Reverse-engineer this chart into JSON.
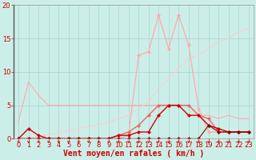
{
  "background_color": "#cceee8",
  "grid_color": "#aad4ce",
  "xlabel": "Vent moyen/en rafales ( km/h )",
  "xlabel_color": "#cc0000",
  "xlabel_fontsize": 7,
  "tick_color": "#cc0000",
  "tick_fontsize": 6,
  "xlim": [
    -0.5,
    23.5
  ],
  "ylim": [
    0,
    20
  ],
  "yticks": [
    0,
    5,
    10,
    15,
    20
  ],
  "xticks": [
    0,
    1,
    2,
    3,
    4,
    5,
    6,
    7,
    8,
    9,
    10,
    11,
    12,
    13,
    14,
    15,
    16,
    17,
    18,
    19,
    20,
    21,
    22,
    23
  ],
  "lines": [
    {
      "x": [
        0,
        1,
        2,
        3,
        4,
        5,
        6,
        7,
        8,
        9,
        10,
        11,
        12,
        13,
        14,
        15,
        16,
        17,
        18,
        19,
        20,
        21,
        22,
        23
      ],
      "y": [
        2.5,
        8.5,
        6.5,
        5.0,
        5.0,
        5.0,
        5.0,
        5.0,
        5.0,
        5.0,
        5.0,
        5.0,
        5.0,
        5.0,
        5.0,
        5.0,
        5.0,
        5.0,
        3.5,
        3.5,
        3.0,
        3.5,
        3.0,
        3.0
      ],
      "color": "#ffaaaa",
      "lw": 0.8,
      "marker": null,
      "ms": 0
    },
    {
      "x": [
        0,
        1,
        2,
        3,
        4,
        5,
        6,
        7,
        8,
        9,
        10,
        11,
        12,
        13,
        14,
        15,
        16,
        17,
        18,
        19,
        20,
        21,
        22,
        23
      ],
      "y": [
        0,
        0,
        0.3,
        0.6,
        0.9,
        1.2,
        1.5,
        1.8,
        2.1,
        2.4,
        3.0,
        3.5,
        4.5,
        5.5,
        7.5,
        9.0,
        10.5,
        12.0,
        12.5,
        13.5,
        14.5,
        15.0,
        16.0,
        16.5
      ],
      "color": "#ffcccc",
      "lw": 0.8,
      "marker": null,
      "ms": 0
    },
    {
      "x": [
        0,
        1,
        2,
        3,
        4,
        5,
        6,
        7,
        8,
        9,
        10,
        11,
        12,
        13,
        14,
        15,
        16,
        17,
        18,
        19,
        20,
        21,
        22,
        23
      ],
      "y": [
        0,
        0,
        0,
        0,
        0,
        0,
        0,
        0,
        0,
        0,
        0,
        0.5,
        12.5,
        13,
        18.5,
        13.5,
        18.5,
        14,
        4.5,
        1,
        1,
        1,
        1,
        1
      ],
      "color": "#ffaaaa",
      "lw": 0.9,
      "marker": "D",
      "ms": 2
    },
    {
      "x": [
        0,
        1,
        2,
        3,
        4,
        5,
        6,
        7,
        8,
        9,
        10,
        11,
        12,
        13,
        14,
        15,
        16,
        17,
        18,
        19,
        20,
        21,
        22,
        23
      ],
      "y": [
        0,
        0,
        0,
        0,
        0,
        0,
        0,
        0,
        0,
        0,
        0.5,
        1,
        2,
        3.5,
        5,
        5,
        5,
        5,
        3.5,
        3.0,
        1,
        1,
        1,
        1
      ],
      "color": "#ee6666",
      "lw": 1.0,
      "marker": "D",
      "ms": 2
    },
    {
      "x": [
        0,
        1,
        2,
        3,
        4,
        5,
        6,
        7,
        8,
        9,
        10,
        11,
        12,
        13,
        14,
        15,
        16,
        17,
        18,
        19,
        20,
        21,
        22,
        23
      ],
      "y": [
        0,
        1.5,
        0.5,
        0,
        0,
        0,
        0,
        0,
        0,
        0,
        0.5,
        0.5,
        1,
        1,
        3.5,
        5,
        5,
        3.5,
        3.5,
        2.0,
        1.5,
        1,
        1,
        1
      ],
      "color": "#cc0000",
      "lw": 1.0,
      "marker": "D",
      "ms": 2
    },
    {
      "x": [
        0,
        1,
        2,
        3,
        4,
        5,
        6,
        7,
        8,
        9,
        10,
        11,
        12,
        13,
        14,
        15,
        16,
        17,
        18,
        19,
        20,
        21,
        22,
        23
      ],
      "y": [
        0,
        0,
        0,
        0,
        0,
        0,
        0,
        0,
        0,
        0,
        0,
        0,
        0,
        0,
        0,
        0,
        0,
        0,
        0,
        2.0,
        1,
        1,
        1,
        1
      ],
      "color": "#880000",
      "lw": 0.8,
      "marker": "D",
      "ms": 2
    }
  ],
  "arrow_color": "#cc0000"
}
